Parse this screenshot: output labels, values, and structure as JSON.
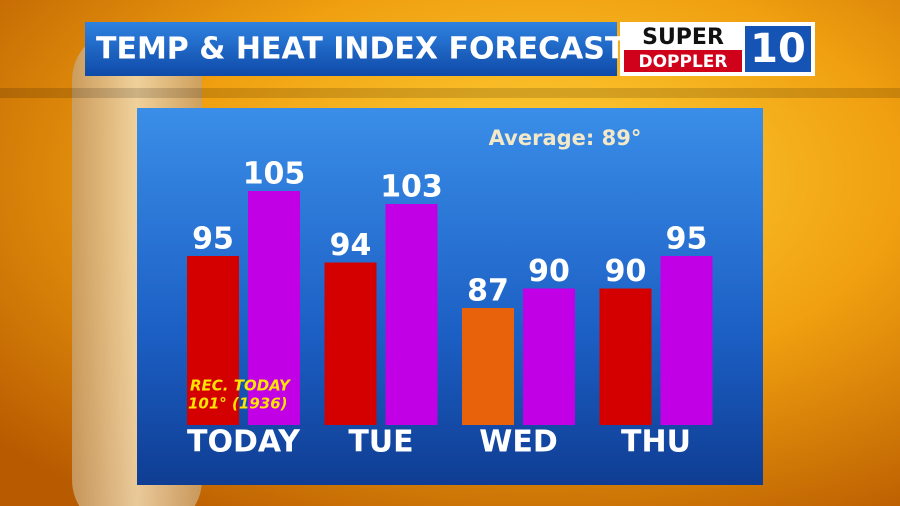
{
  "chart_data": {
    "type": "bar",
    "title": "TEMP & HEAT INDEX FORECAST",
    "logo": {
      "top": "SUPER",
      "bottom": "DOPPLER",
      "number": "10"
    },
    "annotations": {
      "average": "Average: 89°",
      "record_line1": "REC. TODAY",
      "record_line2": "101° (1936)"
    },
    "categories": [
      "TODAY",
      "TUE",
      "WED",
      "THU"
    ],
    "series": [
      {
        "colors": [
          "#d40000",
          "#d40000",
          "#e8620c",
          "#d40000"
        ],
        "values": [
          95,
          94,
          87,
          90
        ]
      },
      {
        "color": "#c200e6",
        "values": [
          105,
          103,
          90,
          95
        ]
      }
    ],
    "ylim": [
      69,
      118
    ]
  }
}
